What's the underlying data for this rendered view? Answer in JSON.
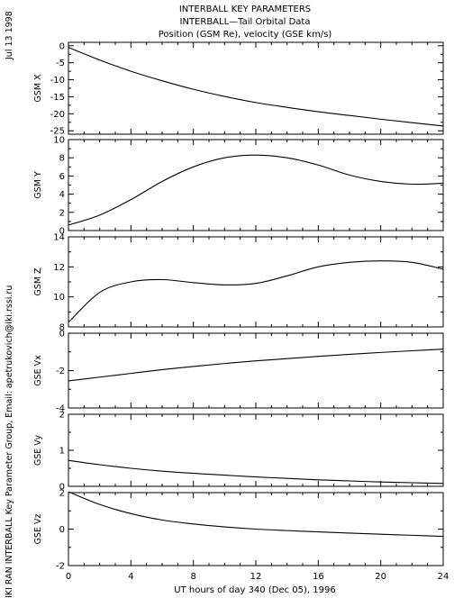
{
  "header": {
    "title_lines": [
      "INTERBALL KEY PARAMETERS",
      "INTERBALL—Tail Orbital Data",
      "Position (GSM Re), velocity (GSE km/s)"
    ]
  },
  "side_labels": {
    "left_top": "Jul 13 1998",
    "left_bottom": "IKI RAN INTERBALL Key Parameter Group, Email: apetrukovich@iki.rssi.ru"
  },
  "chart_data": {
    "type": "line",
    "xlabel": "UT hours of day 340 (Dec 05), 1996",
    "xlim": [
      0,
      24
    ],
    "xticks": [
      0,
      4,
      8,
      12,
      16,
      20,
      24
    ],
    "line_color": "#000000",
    "grid": false,
    "x": [
      0,
      2,
      4,
      6,
      8,
      10,
      12,
      14,
      16,
      18,
      20,
      22,
      24
    ],
    "panels": [
      {
        "ylabel": "GSM X",
        "ylim": [
          -26,
          1
        ],
        "yticks": [
          0,
          -5,
          -10,
          -15,
          -20,
          -25
        ],
        "values": [
          -0.5,
          -4.2,
          -7.5,
          -10.3,
          -12.8,
          -14.9,
          -16.7,
          -18.1,
          -19.4,
          -20.5,
          -21.6,
          -22.6,
          -23.6
        ]
      },
      {
        "ylabel": "GSM Y",
        "ylim": [
          0,
          10
        ],
        "yticks": [
          0,
          2,
          4,
          6,
          8,
          10
        ],
        "values": [
          0.6,
          1.7,
          3.4,
          5.4,
          7.0,
          8.0,
          8.3,
          8.0,
          7.2,
          6.1,
          5.4,
          5.1,
          5.2
        ]
      },
      {
        "ylabel": "GSM Z",
        "ylim": [
          8,
          14
        ],
        "yticks": [
          8,
          10,
          12,
          14
        ],
        "values": [
          8.3,
          10.3,
          11.0,
          11.15,
          10.95,
          10.8,
          10.9,
          11.4,
          12.0,
          12.3,
          12.4,
          12.3,
          11.85
        ]
      },
      {
        "ylabel": "GSE Vx",
        "ylim": [
          -4,
          0
        ],
        "yticks": [
          0,
          -2,
          -4
        ],
        "values": [
          -2.55,
          -2.35,
          -2.15,
          -1.95,
          -1.78,
          -1.62,
          -1.48,
          -1.36,
          -1.24,
          -1.13,
          -1.03,
          -0.94,
          -0.85
        ]
      },
      {
        "ylabel": "GSE Vy",
        "ylim": [
          0,
          2
        ],
        "yticks": [
          0,
          1,
          2
        ],
        "values": [
          0.72,
          0.6,
          0.5,
          0.42,
          0.36,
          0.31,
          0.26,
          0.22,
          0.18,
          0.15,
          0.12,
          0.1,
          0.08
        ]
      },
      {
        "ylabel": "GSE Vz",
        "ylim": [
          -2,
          2
        ],
        "yticks": [
          2,
          0,
          -2
        ],
        "values": [
          2.05,
          1.35,
          0.85,
          0.5,
          0.28,
          0.12,
          0.0,
          -0.08,
          -0.15,
          -0.22,
          -0.28,
          -0.34,
          -0.4
        ]
      }
    ]
  }
}
